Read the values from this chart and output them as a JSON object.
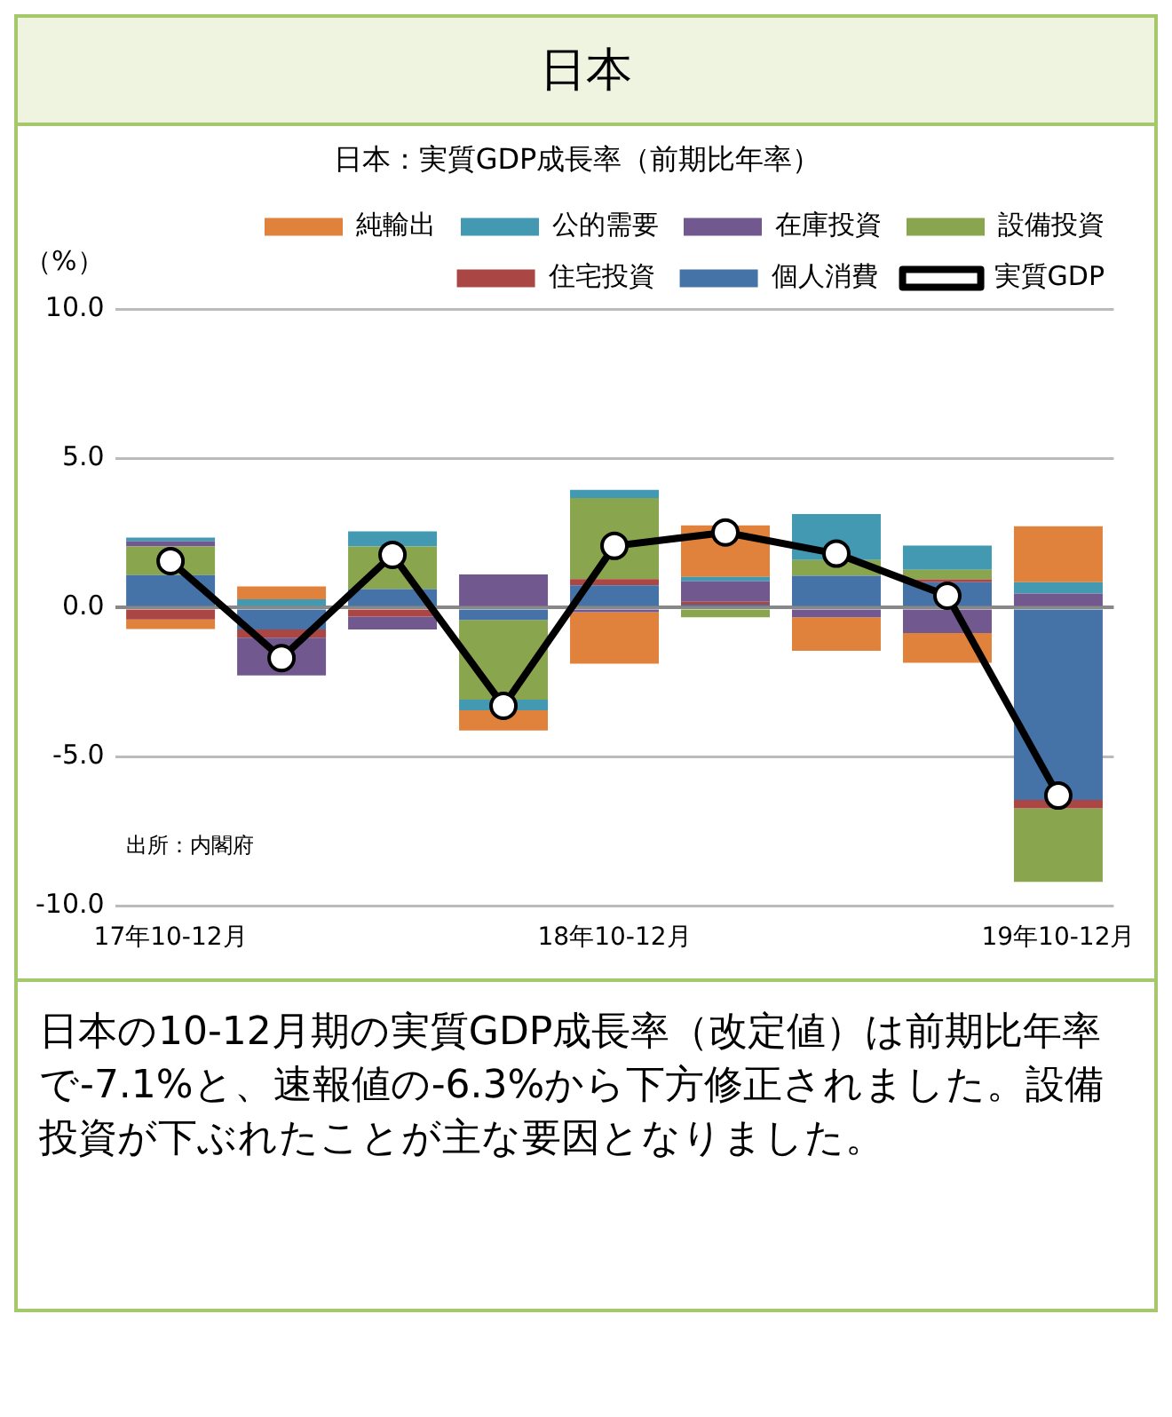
{
  "chart_data": {
    "type": "bar",
    "title": "日本",
    "subtitle": "日本：実質GDP成長率（前期比年率）",
    "ylabel": "（%）",
    "categories": [
      "17年10-12月",
      null,
      null,
      null,
      "18年10-12月",
      null,
      null,
      null,
      "19年10-12月"
    ],
    "stacked": true,
    "series": [
      {
        "name": "個人消費",
        "color": "#4572a7",
        "values": [
          1.09,
          -0.73,
          0.62,
          -0.41,
          0.75,
          0.1,
          1.07,
          0.85,
          -6.45
        ]
      },
      {
        "name": "住宅投資",
        "color": "#aa4643",
        "values": [
          -0.4,
          -0.28,
          -0.3,
          0,
          0.21,
          0.1,
          0,
          0.1,
          -0.28
        ]
      },
      {
        "name": "設備投資",
        "color": "#89a54e",
        "values": [
          0.96,
          0,
          1.43,
          -2.67,
          2.71,
          -0.32,
          0.53,
          0.32,
          -2.46
        ]
      },
      {
        "name": "在庫投資",
        "color": "#71588f",
        "values": [
          0.17,
          -1.26,
          -0.43,
          1.11,
          -0.15,
          0.68,
          -0.32,
          -0.85,
          0.47
        ]
      },
      {
        "name": "公的需要",
        "color": "#4299b1",
        "values": [
          0.13,
          0.28,
          0.51,
          -0.36,
          0.28,
          0.15,
          1.54,
          0.81,
          0.38
        ]
      },
      {
        "name": "純輸出",
        "color": "#e0823c",
        "values": [
          -0.32,
          0.43,
          0,
          -0.68,
          -1.73,
          1.73,
          -1.13,
          -1.0,
          1.88
        ]
      },
      {
        "name": "実質GDP",
        "type": "line",
        "color": "#000000",
        "marker": "circle",
        "values": [
          1.56,
          -1.69,
          1.77,
          -3.29,
          2.07,
          2.52,
          1.81,
          0.4,
          -6.3
        ]
      }
    ],
    "ylim": [
      -10,
      10
    ],
    "yticks": [
      {
        "value": -10,
        "label": "-10.0"
      },
      {
        "value": -5,
        "label": "-5.0"
      },
      {
        "value": 0,
        "label": "0.0"
      },
      {
        "value": 5,
        "label": "5.0"
      },
      {
        "value": 10,
        "label": "10.0"
      }
    ],
    "grid": "y",
    "legend": "top",
    "annotations": [
      "出所：内閣府",
      "日本の10-12月期の実質GDP成長率（改定値）は前期比年率で-7.1%と、速報値の-6.3%から下方修正されました。設備投資が下ぶれたことが主な要因となりました。"
    ]
  }
}
